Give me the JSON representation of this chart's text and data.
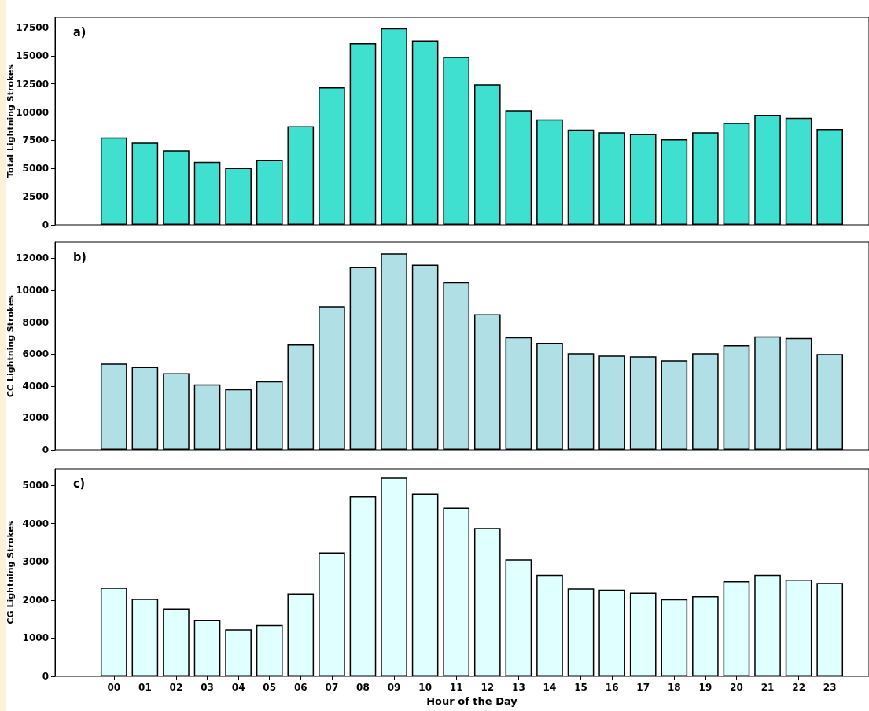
{
  "chart_data": [
    {
      "type": "bar",
      "categories": [
        "00",
        "01",
        "02",
        "03",
        "04",
        "05",
        "06",
        "07",
        "08",
        "09",
        "10",
        "11",
        "12",
        "13",
        "14",
        "15",
        "16",
        "17",
        "18",
        "19",
        "20",
        "21",
        "22",
        "23"
      ],
      "ylabel": "Total Lightning Strokes",
      "annotations": [
        "a)"
      ],
      "tick_labels": "y",
      "grid": false,
      "ylim": [
        0,
        18400
      ],
      "yticks": [
        0,
        2500,
        5000,
        7500,
        10000,
        12500,
        15000,
        17500
      ],
      "series": [
        {
          "color": "#40e0d0",
          "values": [
            7750,
            7300,
            6600,
            5600,
            5050,
            5750,
            8750,
            12200,
            16100,
            17450,
            16350,
            14900,
            12450,
            10150,
            9350,
            8450,
            8200,
            8050,
            7600,
            8200,
            9050,
            9750,
            9500,
            8500
          ]
        }
      ]
    },
    {
      "type": "bar",
      "categories": [
        "00",
        "01",
        "02",
        "03",
        "04",
        "05",
        "06",
        "07",
        "08",
        "09",
        "10",
        "11",
        "12",
        "13",
        "14",
        "15",
        "16",
        "17",
        "18",
        "19",
        "20",
        "21",
        "22",
        "23"
      ],
      "ylabel": "CC Lightning Strokes",
      "annotations": [
        "b)"
      ],
      "tick_labels": "y",
      "grid": false,
      "ylim": [
        0,
        13000
      ],
      "yticks": [
        0,
        2000,
        4000,
        6000,
        8000,
        10000,
        12000
      ],
      "series": [
        {
          "color": "#b0e0e6",
          "values": [
            5400,
            5200,
            4800,
            4100,
            3800,
            4300,
            6600,
            9000,
            11450,
            12300,
            11600,
            10500,
            8500,
            7050,
            6700,
            6050,
            5900,
            5850,
            5600,
            6050,
            6550,
            7100,
            7000,
            6000
          ]
        }
      ]
    },
    {
      "type": "bar",
      "categories": [
        "00",
        "01",
        "02",
        "03",
        "04",
        "05",
        "06",
        "07",
        "08",
        "09",
        "10",
        "11",
        "12",
        "13",
        "14",
        "15",
        "16",
        "17",
        "18",
        "19",
        "20",
        "21",
        "22",
        "23"
      ],
      "xlabel": "Hour of the Day",
      "ylabel": "CG Lightning Strokes",
      "annotations": [
        "c)"
      ],
      "grid": false,
      "ylim": [
        0,
        5430
      ],
      "yticks": [
        0,
        1000,
        2000,
        3000,
        4000,
        5000
      ],
      "series": [
        {
          "color": "#e0ffff",
          "values": [
            2320,
            2030,
            1780,
            1480,
            1230,
            1340,
            2170,
            3240,
            4710,
            5200,
            4780,
            4410,
            3880,
            3060,
            2660,
            2300,
            2270,
            2190,
            2020,
            2100,
            2490,
            2660,
            2530,
            2440
          ]
        }
      ]
    }
  ]
}
